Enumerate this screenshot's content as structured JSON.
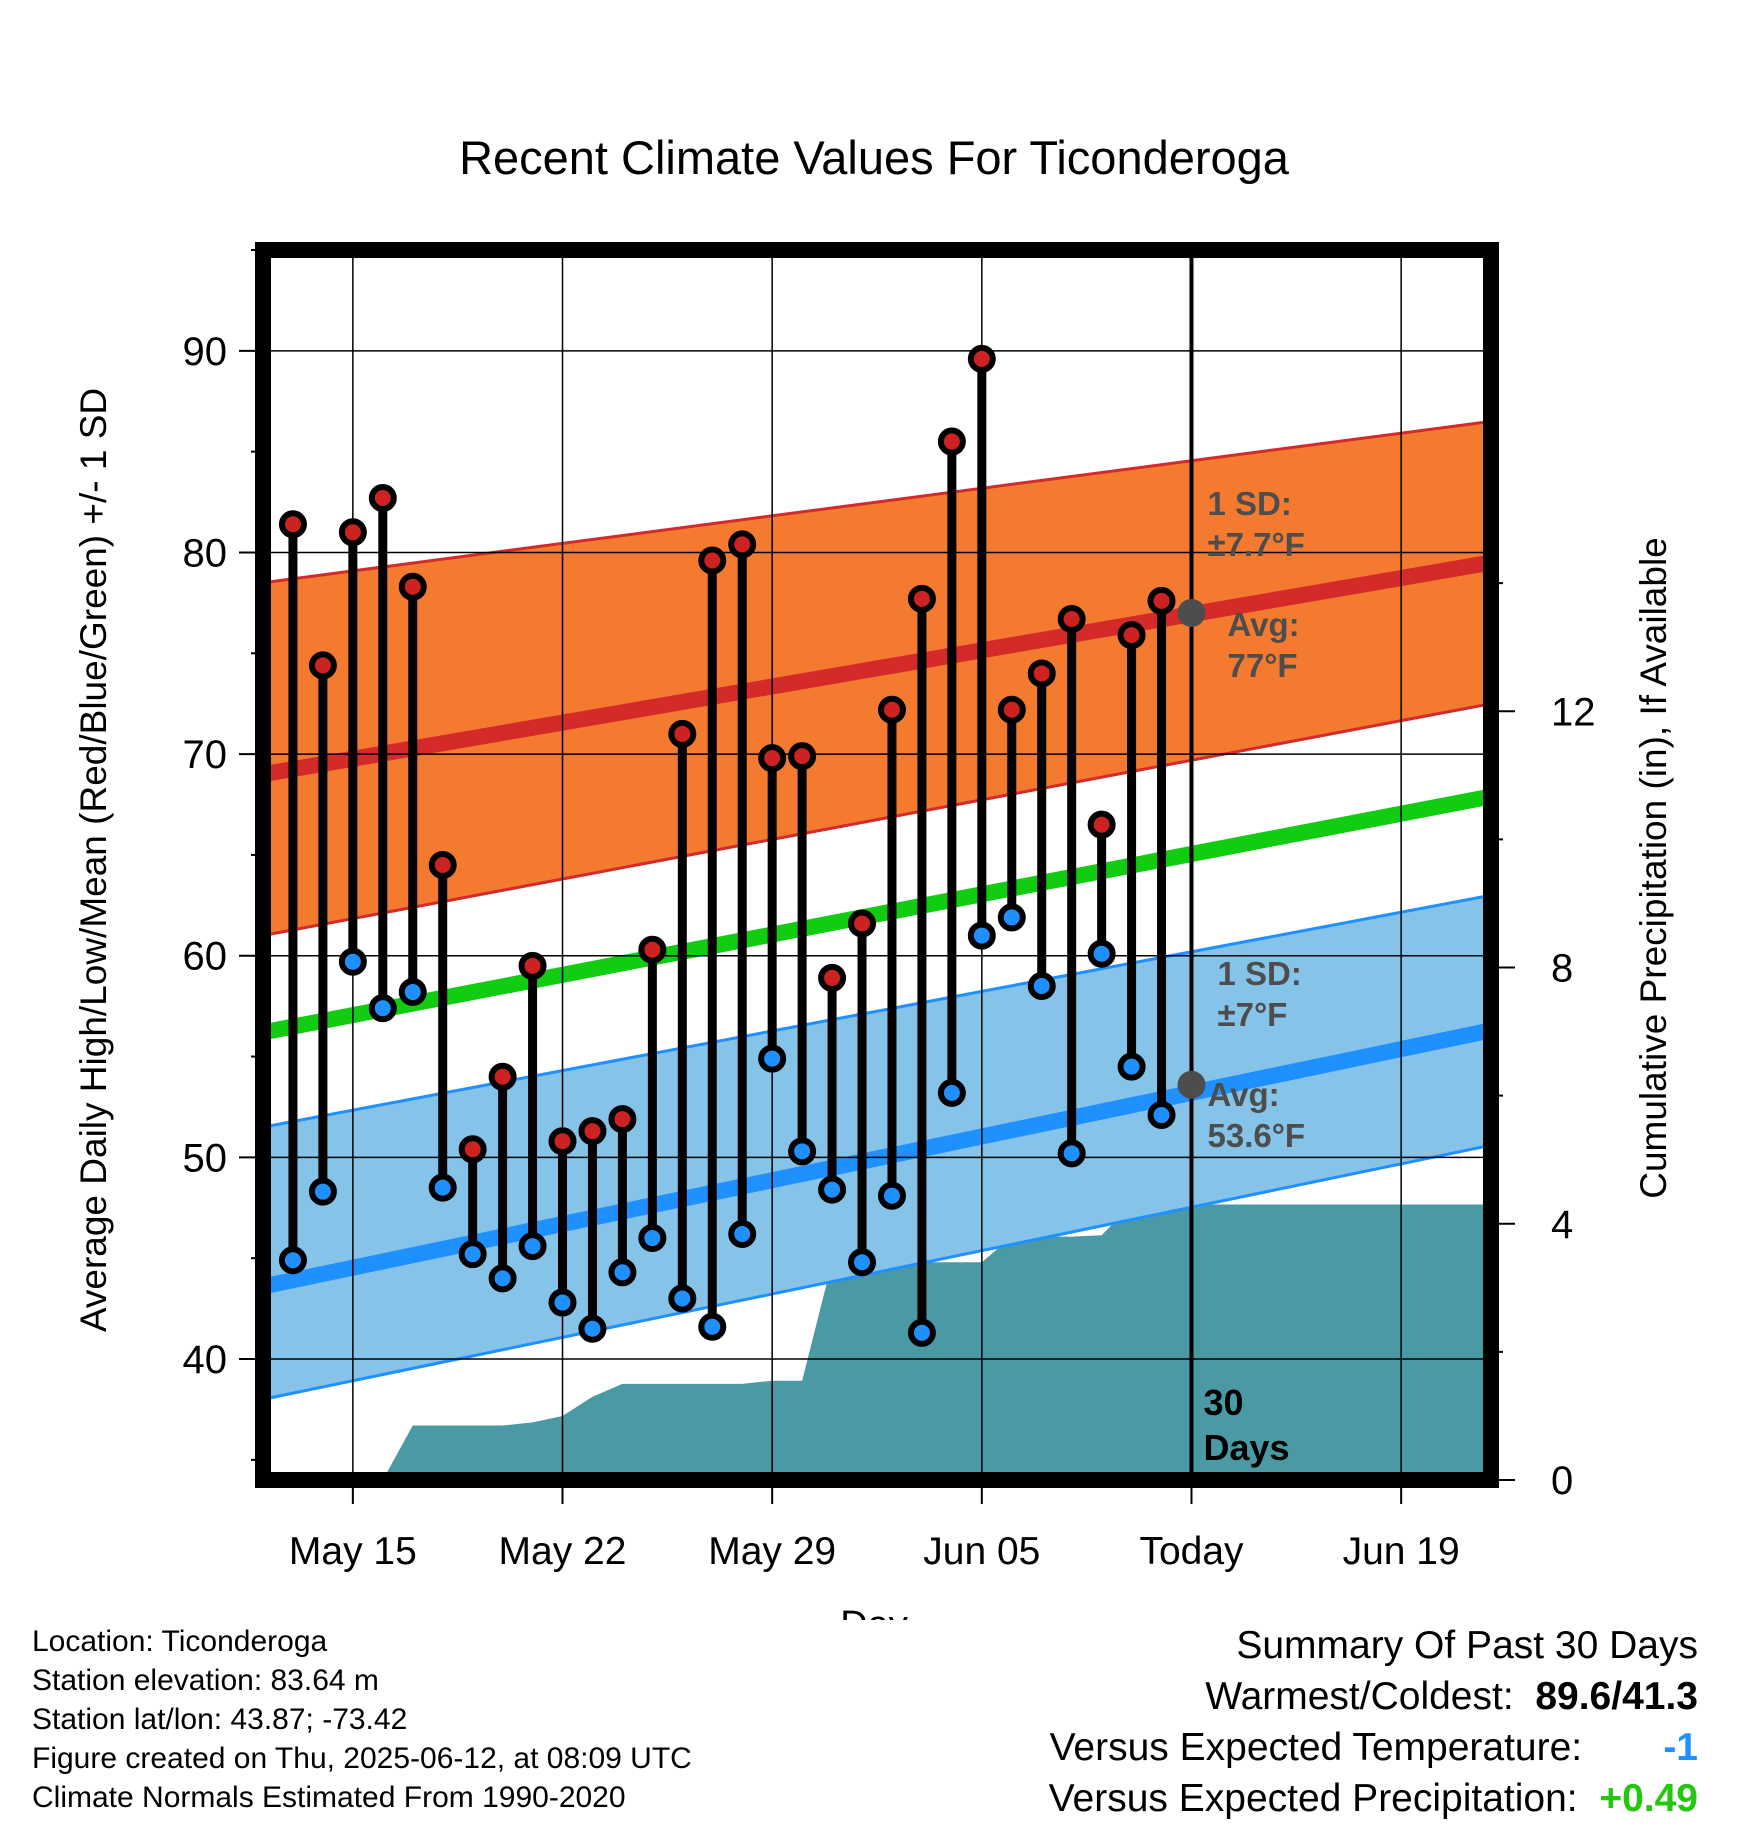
{
  "chart_data": {
    "type": "line",
    "title": "Recent Climate Values For Ticonderoga",
    "xlabel": "Day",
    "ylabel_left": "Average Daily High/Low/Mean (Red/Blue/Green) +/- 1 SD",
    "ylabel_right": "Cumulative Precipitation (in), If Available",
    "x_tick_labels": [
      "May 15",
      "May 22",
      "May 29",
      "Jun 05",
      "Today",
      "Jun 19"
    ],
    "x_tick_dates": [
      "2025-05-15",
      "2025-05-22",
      "2025-05-29",
      "2025-06-05",
      "2025-06-12",
      "2025-06-19"
    ],
    "xlim": [
      "2025-05-12",
      "2025-06-22"
    ],
    "ylim_left": [
      34,
      95
    ],
    "y_left_ticks": [
      "40",
      "50",
      "60",
      "70",
      "80",
      "90"
    ],
    "ylim_right": [
      0,
      19.2
    ],
    "y_right_ticks": [
      "0",
      "4",
      "8",
      "12"
    ],
    "grid": true,
    "today_date": "2025-06-12",
    "today_label": "30 Days",
    "high_normal": {
      "avg_start": 69.0,
      "avg_end": 79.5,
      "upper_start": 78.5,
      "upper_end": 86.5,
      "lower_start": 61.0,
      "lower_end": 72.5,
      "sd_label": "1 SD:",
      "sd_value": "±7.7°F",
      "avg_label": "Avg:",
      "avg_value": "77°F",
      "today_avg": 77.0
    },
    "low_normal": {
      "avg_start": 43.6,
      "avg_end": 56.3,
      "upper_start": 51.5,
      "upper_end": 63.0,
      "lower_start": 38.0,
      "lower_end": 50.6,
      "sd_label": "1 SD:",
      "sd_value": "±7°F",
      "avg_label": "Avg:",
      "avg_value": "53.6°F",
      "today_avg": 53.6
    },
    "mean_normal": {
      "start": 56.2,
      "end": 67.9
    },
    "series": [
      {
        "name": "High",
        "color": "#cc2222",
        "x": [
          "2025-05-13",
          "2025-05-14",
          "2025-05-15",
          "2025-05-16",
          "2025-05-17",
          "2025-05-18",
          "2025-05-19",
          "2025-05-20",
          "2025-05-21",
          "2025-05-22",
          "2025-05-23",
          "2025-05-24",
          "2025-05-25",
          "2025-05-26",
          "2025-05-27",
          "2025-05-28",
          "2025-05-29",
          "2025-05-30",
          "2025-05-31",
          "2025-06-01",
          "2025-06-02",
          "2025-06-03",
          "2025-06-04",
          "2025-06-05",
          "2025-06-06",
          "2025-06-07",
          "2025-06-08",
          "2025-06-09",
          "2025-06-10",
          "2025-06-11"
        ],
        "values": [
          81.4,
          74.4,
          81.0,
          82.7,
          78.3,
          64.5,
          50.4,
          54.0,
          59.5,
          50.8,
          51.3,
          51.9,
          60.3,
          71.0,
          79.6,
          80.4,
          69.8,
          69.9,
          58.9,
          61.6,
          72.2,
          77.7,
          85.5,
          89.6,
          72.2,
          74.0,
          76.7,
          66.5,
          75.9,
          77.6
        ]
      },
      {
        "name": "Low",
        "color": "#1e90ff",
        "x": [
          "2025-05-13",
          "2025-05-14",
          "2025-05-15",
          "2025-05-16",
          "2025-05-17",
          "2025-05-18",
          "2025-05-19",
          "2025-05-20",
          "2025-05-21",
          "2025-05-22",
          "2025-05-23",
          "2025-05-24",
          "2025-05-25",
          "2025-05-26",
          "2025-05-27",
          "2025-05-28",
          "2025-05-29",
          "2025-05-30",
          "2025-05-31",
          "2025-06-01",
          "2025-06-02",
          "2025-06-03",
          "2025-06-04",
          "2025-06-05",
          "2025-06-06",
          "2025-06-07",
          "2025-06-08",
          "2025-06-09",
          "2025-06-10",
          "2025-06-11"
        ],
        "values": [
          44.9,
          48.3,
          59.7,
          57.4,
          58.2,
          48.5,
          45.2,
          44.0,
          45.6,
          42.8,
          41.5,
          44.3,
          46.0,
          43.0,
          41.6,
          46.2,
          54.9,
          50.3,
          48.4,
          44.8,
          48.1,
          41.3,
          53.2,
          61.0,
          61.9,
          58.5,
          50.2,
          60.1,
          54.5,
          52.1
        ]
      },
      {
        "name": "Cumulative Precipitation",
        "color": "#4a9aa5",
        "x": [
          "2025-05-16",
          "2025-05-17",
          "2025-05-18",
          "2025-05-19",
          "2025-05-20",
          "2025-05-21",
          "2025-05-22",
          "2025-05-23",
          "2025-05-24",
          "2025-05-25",
          "2025-05-26",
          "2025-05-27",
          "2025-05-28",
          "2025-05-29",
          "2025-05-30",
          "2025-05-31",
          "2025-06-01",
          "2025-06-02",
          "2025-06-03",
          "2025-06-04",
          "2025-06-05",
          "2025-06-06",
          "2025-06-07",
          "2025-06-08",
          "2025-06-09",
          "2025-06-10",
          "2025-06-11",
          "2025-06-12",
          "2025-06-22"
        ],
        "values": [
          0.0,
          0.85,
          0.85,
          0.85,
          0.85,
          0.9,
          1.0,
          1.3,
          1.5,
          1.5,
          1.5,
          1.5,
          1.5,
          1.55,
          1.55,
          3.4,
          3.4,
          3.4,
          3.4,
          3.4,
          3.4,
          3.8,
          3.8,
          3.8,
          3.82,
          4.3,
          4.3,
          4.3,
          4.3
        ]
      }
    ]
  },
  "footer": {
    "location": "Location: Ticonderoga",
    "elevation": "Station elevation: 83.64 m",
    "latlon": "Station lat/lon: 43.87; -73.42",
    "created": "Figure created on Thu, 2025-06-12, at 08:09 UTC",
    "normals": "Climate Normals Estimated From 1990-2020"
  },
  "summary": {
    "title": "Summary Of Past 30 Days",
    "warm_cold_label": "Warmest/Coldest:",
    "warm_cold_value": "89.6/41.3",
    "temp_label": "Versus Expected Temperature:",
    "temp_value": "-1",
    "precip_label": "Versus Expected Precipitation:",
    "precip_value": "+0.49",
    "temp_color": "#1e90ff",
    "precip_color": "#22c70e"
  }
}
